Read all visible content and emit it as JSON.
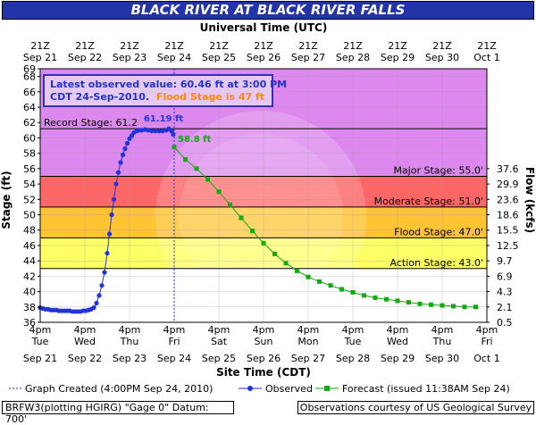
{
  "title": "BLACK RIVER AT BLACK RIVER FALLS",
  "chart_data": {
    "type": "line",
    "top_axis_title": "Universal Time (UTC)",
    "top_ticks": [
      {
        "l1": "21Z",
        "l2": "Sep 21"
      },
      {
        "l1": "21Z",
        "l2": "Sep 22"
      },
      {
        "l1": "21Z",
        "l2": "Sep 23"
      },
      {
        "l1": "21Z",
        "l2": "Sep 24"
      },
      {
        "l1": "21Z",
        "l2": "Sep 25"
      },
      {
        "l1": "21Z",
        "l2": "Sep 26"
      },
      {
        "l1": "21Z",
        "l2": "Sep 27"
      },
      {
        "l1": "21Z",
        "l2": "Sep 28"
      },
      {
        "l1": "21Z",
        "l2": "Sep 29"
      },
      {
        "l1": "21Z",
        "l2": "Sep 30"
      },
      {
        "l1": "21Z",
        "l2": "Oct 1"
      }
    ],
    "xlabel": "Site Time (CDT)",
    "bottom_ticks": [
      {
        "l1": "4pm",
        "l2": "Tue",
        "l3": "Sep 21"
      },
      {
        "l1": "4pm",
        "l2": "Wed",
        "l3": "Sep 22"
      },
      {
        "l1": "4pm",
        "l2": "Thu",
        "l3": "Sep 23"
      },
      {
        "l1": "4pm",
        "l2": "Fri",
        "l3": "Sep 24"
      },
      {
        "l1": "4pm",
        "l2": "Sat",
        "l3": "Sep 25"
      },
      {
        "l1": "4pm",
        "l2": "Sun",
        "l3": "Sep 26"
      },
      {
        "l1": "4pm",
        "l2": "Mon",
        "l3": "Sep 27"
      },
      {
        "l1": "4pm",
        "l2": "Tue",
        "l3": "Sep 28"
      },
      {
        "l1": "4pm",
        "l2": "Wed",
        "l3": "Sep 29"
      },
      {
        "l1": "4pm",
        "l2": "Thu",
        "l3": "Sep 30"
      },
      {
        "l1": "4pm",
        "l2": "Fri",
        "l3": "Oct 1"
      }
    ],
    "ylabel": "Stage (ft)",
    "ylim": [
      36,
      69
    ],
    "y_ticks": [
      36,
      38,
      40,
      42,
      44,
      46,
      48,
      50,
      52,
      54,
      56,
      58,
      60,
      62,
      64,
      66,
      68,
      69
    ],
    "y2label": "Flow (kcfs)",
    "flow_ticks": [
      {
        "label": "0.5",
        "stage": 36
      },
      {
        "label": "2.1",
        "stage": 38
      },
      {
        "label": "4.3",
        "stage": 40
      },
      {
        "label": "6.9",
        "stage": 42
      },
      {
        "label": "9.7",
        "stage": 44
      },
      {
        "label": "12.5",
        "stage": 46
      },
      {
        "label": "15.5",
        "stage": 48
      },
      {
        "label": "18.6",
        "stage": 50
      },
      {
        "label": "23.6",
        "stage": 52
      },
      {
        "label": "29.9",
        "stage": 54
      },
      {
        "label": "37.6",
        "stage": 56
      }
    ],
    "bands": [
      {
        "from": 36,
        "to": 43,
        "color": "#ffffff"
      },
      {
        "from": 43,
        "to": 47,
        "color": "#ffff66"
      },
      {
        "from": 47,
        "to": 51,
        "color": "#ffc433"
      },
      {
        "from": 51,
        "to": 55,
        "color": "#ff6666"
      },
      {
        "from": 55,
        "to": 69,
        "color": "#dd88ee"
      }
    ],
    "stage_lines": [
      {
        "label": "Record Stage: 61.2",
        "value": 61.2,
        "side": "left"
      },
      {
        "label": "Major Stage: 55.0'",
        "value": 55.0,
        "side": "right"
      },
      {
        "label": "Moderate Stage: 51.0'",
        "value": 51.0,
        "side": "right"
      },
      {
        "label": "Flood Stage: 47.0'",
        "value": 47.0,
        "side": "right"
      },
      {
        "label": "Action Stage: 43.0'",
        "value": 43.0,
        "side": "right"
      }
    ],
    "info_box": {
      "line1": "Latest observed value: 60.46 ft at 3:00 PM",
      "line2a": "CDT 24-Sep-2010.",
      "line2b": "Flood Stage is 47 ft"
    },
    "graph_created_day": 3.0,
    "series": [
      {
        "name": "Observed",
        "color": "#2233dd",
        "peak_label": "61.19 ft",
        "x": [
          0.0,
          0.06,
          0.12,
          0.18,
          0.24,
          0.3,
          0.36,
          0.42,
          0.48,
          0.54,
          0.6,
          0.66,
          0.72,
          0.78,
          0.84,
          0.9,
          0.96,
          1.02,
          1.08,
          1.14,
          1.2,
          1.26,
          1.32,
          1.38,
          1.44,
          1.5,
          1.55,
          1.6,
          1.65,
          1.7,
          1.75,
          1.8,
          1.85,
          1.9,
          1.95,
          2.0,
          2.05,
          2.1,
          2.16,
          2.22,
          2.28,
          2.35,
          2.42,
          2.5,
          2.58,
          2.66,
          2.74,
          2.82,
          2.88,
          2.94,
          2.98
        ],
        "y": [
          37.9,
          37.8,
          37.7,
          37.7,
          37.6,
          37.6,
          37.6,
          37.5,
          37.5,
          37.5,
          37.5,
          37.5,
          37.4,
          37.4,
          37.4,
          37.4,
          37.5,
          37.5,
          37.6,
          37.7,
          37.9,
          38.5,
          39.5,
          40.8,
          42.5,
          45.0,
          47.5,
          50.0,
          52.0,
          54.0,
          55.5,
          56.8,
          57.8,
          58.6,
          59.3,
          59.9,
          60.3,
          60.7,
          60.9,
          61.0,
          61.0,
          61.1,
          61.0,
          60.9,
          60.9,
          60.9,
          60.9,
          61.0,
          61.19,
          60.9,
          60.46
        ]
      },
      {
        "name": "Forecast",
        "issued": "(issued 11:38AM Sep 24)",
        "color": "#11aa11",
        "start_label": "58.8 ft",
        "x": [
          3.0,
          3.25,
          3.5,
          3.75,
          4.0,
          4.25,
          4.5,
          4.75,
          5.0,
          5.25,
          5.5,
          5.75,
          6.0,
          6.25,
          6.5,
          6.75,
          7.0,
          7.25,
          7.5,
          7.75,
          8.0,
          8.25,
          8.5,
          8.75,
          9.0,
          9.25,
          9.5,
          9.75
        ],
        "y": [
          58.8,
          57.2,
          56.0,
          54.6,
          53.0,
          51.3,
          49.6,
          47.9,
          46.3,
          44.9,
          43.7,
          42.7,
          41.9,
          41.3,
          40.8,
          40.3,
          39.9,
          39.5,
          39.2,
          39.0,
          38.8,
          38.6,
          38.4,
          38.3,
          38.2,
          38.1,
          38.0,
          38.0
        ]
      }
    ]
  },
  "legend": {
    "created": "Graph Created (4:00PM Sep 24, 2010)",
    "observed": "Observed",
    "forecast": "Forecast (issued 11:38AM Sep 24)"
  },
  "credits": {
    "left": "BRFW3(plotting HGIRG) \"Gage 0\" Datum: 700'",
    "right": "Observations courtesy of US Geological Survey"
  }
}
